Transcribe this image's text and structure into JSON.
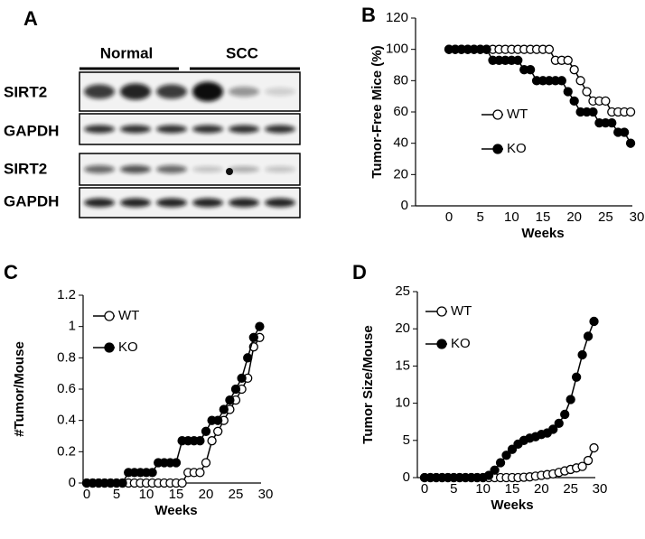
{
  "blot": {
    "panel_label": "A",
    "groups": [
      "Normal",
      "SCC"
    ],
    "rows": [
      "SIRT2",
      "GAPDH",
      "SIRT2",
      "GAPDH"
    ]
  },
  "chart_data": [
    {
      "type": "line",
      "panel_label": "B",
      "x_label": "Weeks",
      "y_label": "Tumor-Free Mice (%)",
      "x": [
        0,
        1,
        2,
        3,
        4,
        5,
        6,
        7,
        8,
        9,
        10,
        11,
        12,
        13,
        14,
        15,
        16,
        17,
        18,
        19,
        20,
        21,
        22,
        23,
        24,
        25,
        26,
        27,
        28,
        29
      ],
      "series": [
        {
          "name": "WT",
          "color": "#000000",
          "marker_fill": "#ffffff",
          "values": [
            100,
            100,
            100,
            100,
            100,
            100,
            100,
            100,
            100,
            100,
            100,
            100,
            100,
            100,
            100,
            100,
            100,
            93,
            93,
            93,
            87,
            80,
            73,
            67,
            67,
            67,
            60,
            60,
            60,
            60
          ]
        },
        {
          "name": "KO",
          "color": "#000000",
          "marker_fill": "#000000",
          "values": [
            100,
            100,
            100,
            100,
            100,
            100,
            100,
            93,
            93,
            93,
            93,
            93,
            87,
            87,
            80,
            80,
            80,
            80,
            80,
            73,
            67,
            60,
            60,
            60,
            53,
            53,
            53,
            47,
            47,
            40
          ]
        }
      ],
      "xlim": [
        0,
        30
      ],
      "xticks": [
        0,
        5,
        10,
        15,
        20,
        25,
        30
      ],
      "ylim": [
        0,
        120
      ],
      "yticks": [
        0,
        20,
        40,
        60,
        80,
        100,
        120
      ]
    },
    {
      "type": "line",
      "panel_label": "C",
      "x_label": "Weeks",
      "y_label": "#Tumor/Mouse",
      "x": [
        0,
        1,
        2,
        3,
        4,
        5,
        6,
        7,
        8,
        9,
        10,
        11,
        12,
        13,
        14,
        15,
        16,
        17,
        18,
        19,
        20,
        21,
        22,
        23,
        24,
        25,
        26,
        27,
        28,
        29
      ],
      "series": [
        {
          "name": "WT",
          "color": "#000000",
          "marker_fill": "#ffffff",
          "values": [
            0,
            0,
            0,
            0,
            0,
            0,
            0,
            0,
            0,
            0,
            0,
            0,
            0,
            0,
            0,
            0,
            0,
            0.067,
            0.067,
            0.067,
            0.13,
            0.27,
            0.33,
            0.4,
            0.47,
            0.53,
            0.6,
            0.67,
            0.87,
            0.93
          ]
        },
        {
          "name": "KO",
          "color": "#000000",
          "marker_fill": "#000000",
          "values": [
            0,
            0,
            0,
            0,
            0,
            0,
            0,
            0.067,
            0.067,
            0.067,
            0.067,
            0.067,
            0.13,
            0.13,
            0.13,
            0.13,
            0.27,
            0.27,
            0.27,
            0.27,
            0.33,
            0.4,
            0.4,
            0.47,
            0.53,
            0.6,
            0.67,
            0.8,
            0.93,
            1.0
          ]
        }
      ],
      "xlim": [
        0,
        30
      ],
      "xticks": [
        0,
        5,
        10,
        15,
        20,
        25,
        30
      ],
      "ylim": [
        0,
        1.2
      ],
      "yticks": [
        0,
        0.2,
        0.4,
        0.6,
        0.8,
        1,
        1.2
      ]
    },
    {
      "type": "line",
      "panel_label": "D",
      "x_label": "Weeks",
      "y_label": "Tumor Size/Mouse",
      "x": [
        0,
        1,
        2,
        3,
        4,
        5,
        6,
        7,
        8,
        9,
        10,
        11,
        12,
        13,
        14,
        15,
        16,
        17,
        18,
        19,
        20,
        21,
        22,
        23,
        24,
        25,
        26,
        27,
        28,
        29
      ],
      "series": [
        {
          "name": "WT",
          "color": "#000000",
          "marker_fill": "#ffffff",
          "values": [
            0,
            0,
            0,
            0,
            0,
            0,
            0,
            0,
            0,
            0,
            0,
            0,
            0,
            0,
            0,
            0,
            0,
            0.05,
            0.1,
            0.2,
            0.3,
            0.4,
            0.5,
            0.7,
            0.9,
            1.1,
            1.3,
            1.5,
            2.3,
            4.0
          ]
        },
        {
          "name": "KO",
          "color": "#000000",
          "marker_fill": "#000000",
          "values": [
            0,
            0,
            0,
            0,
            0,
            0,
            0,
            0,
            0,
            0,
            0,
            0.3,
            1,
            2,
            3,
            3.8,
            4.5,
            5,
            5.3,
            5.5,
            5.8,
            6,
            6.5,
            7.3,
            8.5,
            10.5,
            13.5,
            16.5,
            19,
            21
          ]
        }
      ],
      "xlim": [
        0,
        30
      ],
      "xticks": [
        0,
        5,
        10,
        15,
        20,
        25,
        30
      ],
      "ylim": [
        0,
        25
      ],
      "yticks": [
        0,
        5,
        10,
        15,
        20,
        25
      ]
    }
  ]
}
